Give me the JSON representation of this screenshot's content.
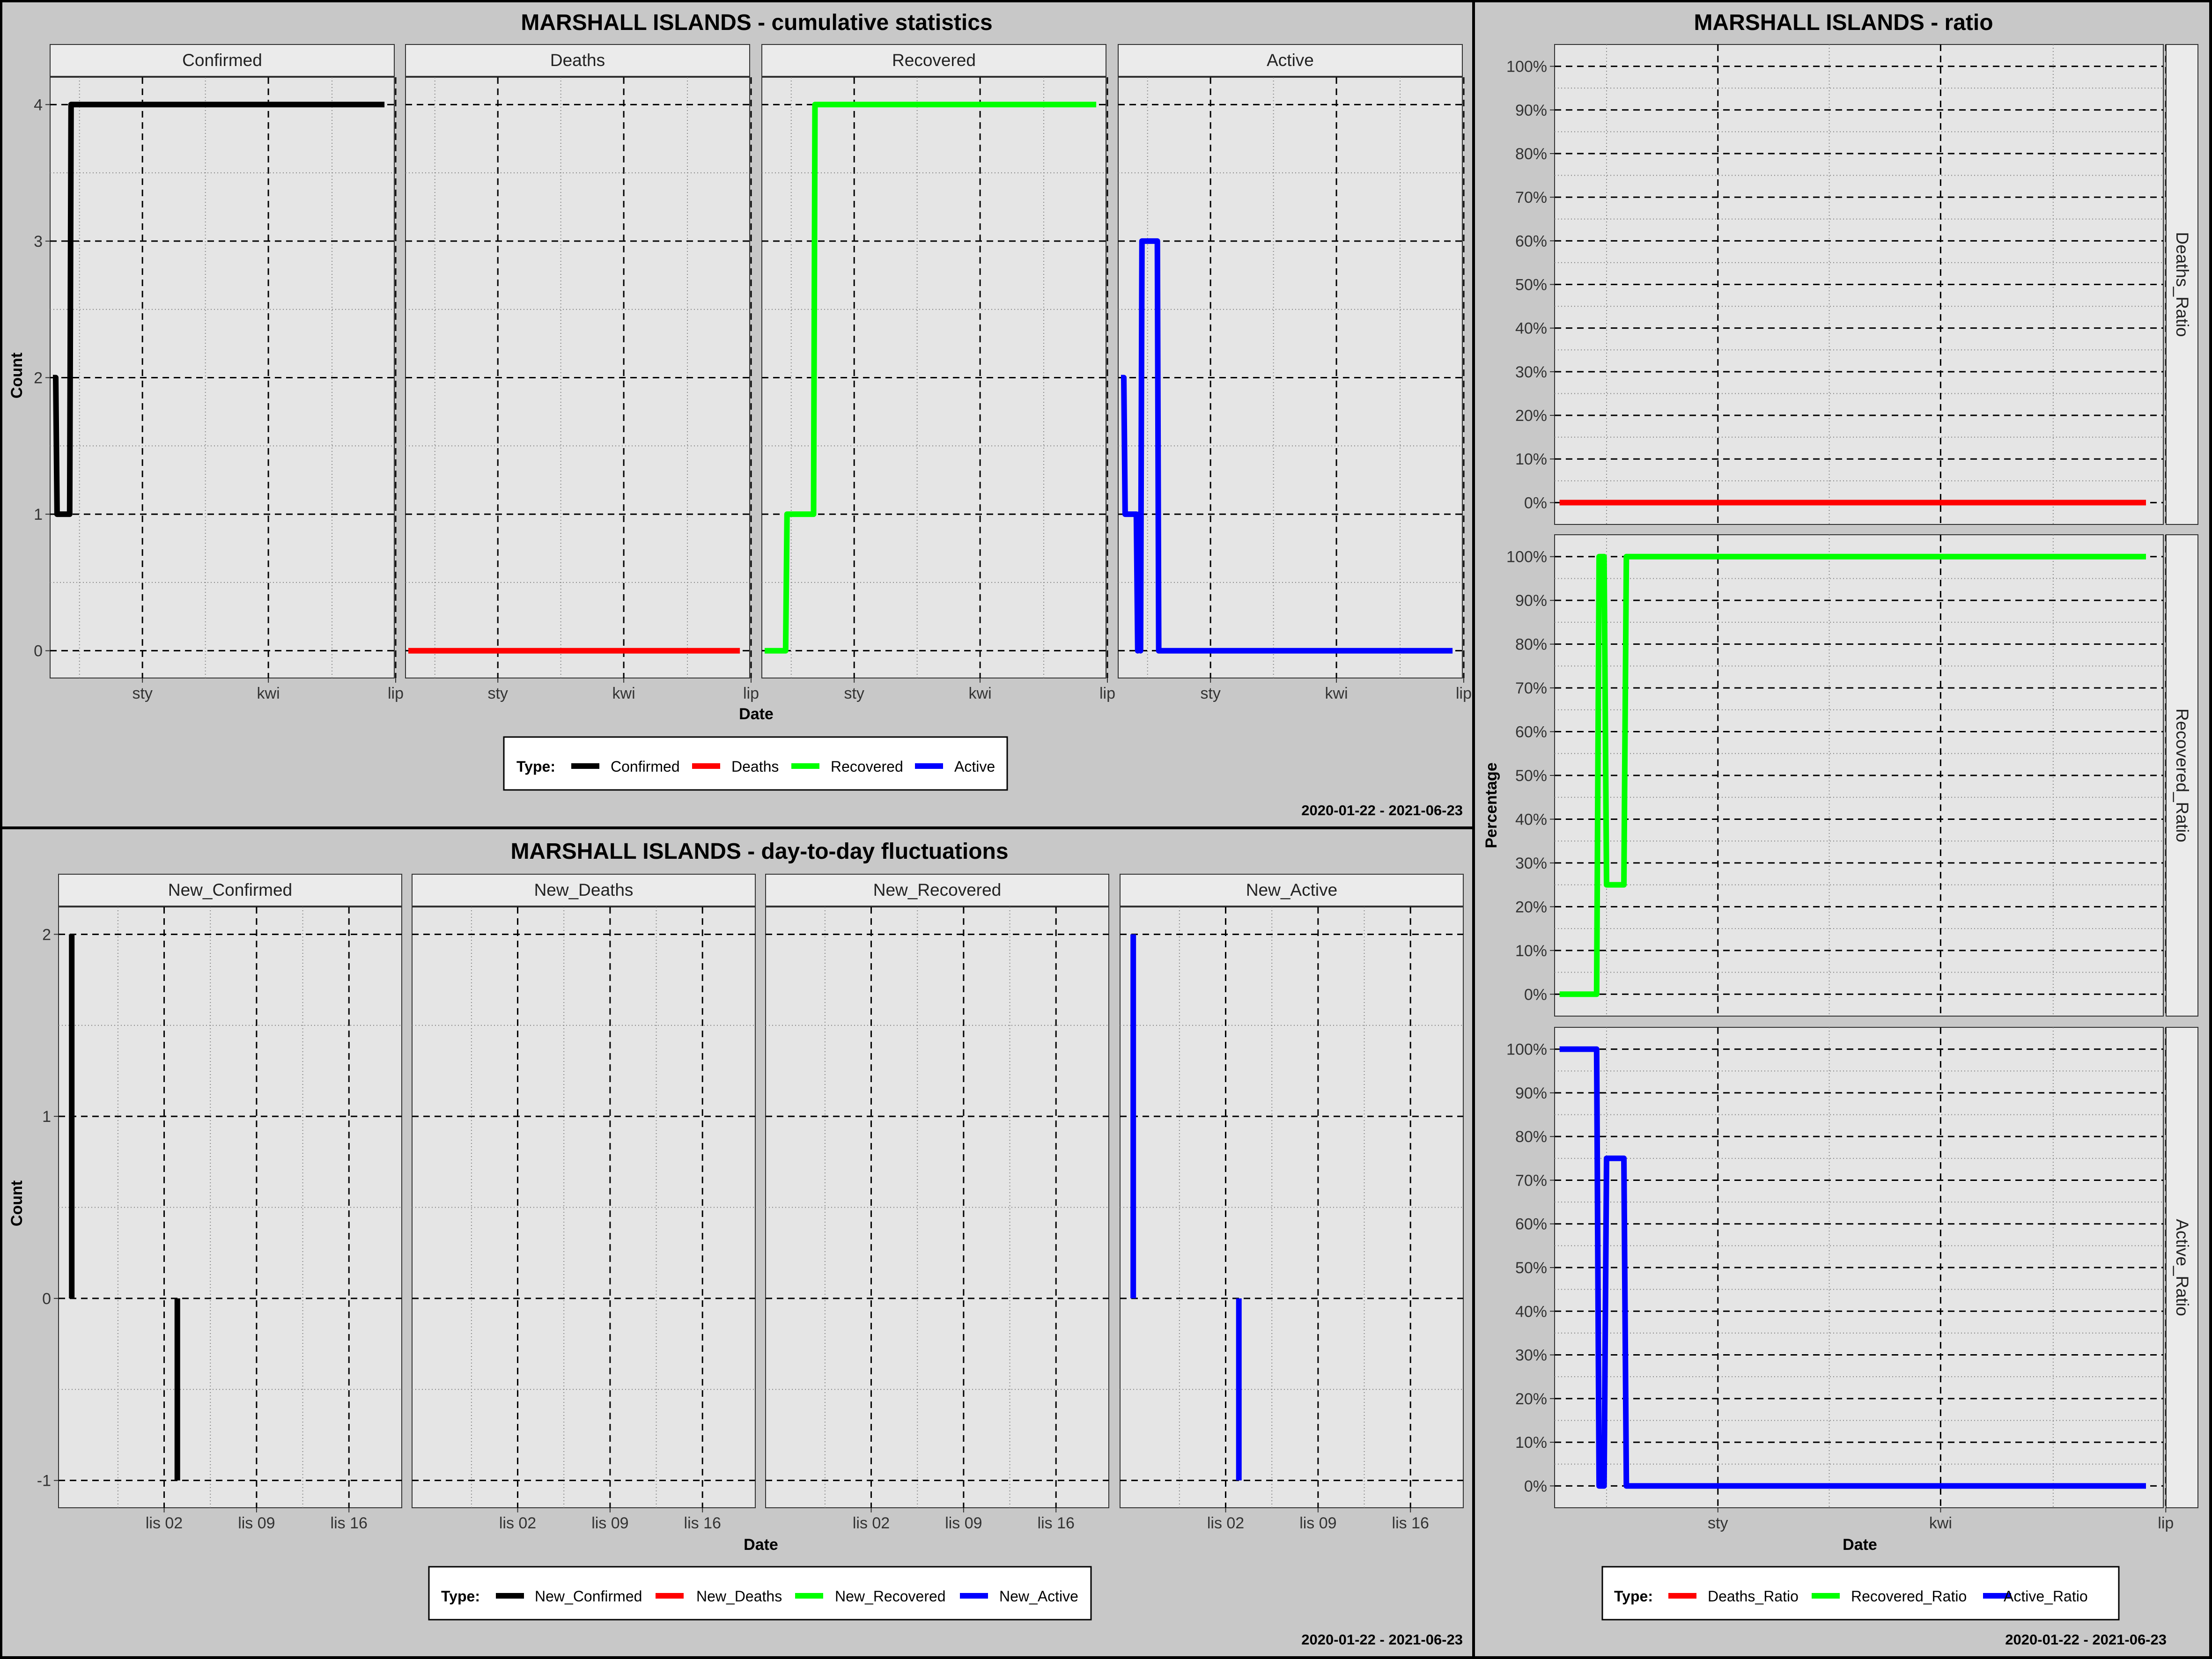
{
  "colors": {
    "black": "#000000",
    "red": "#ff0000",
    "green": "#00ff00",
    "blue": "#0000ff",
    "panel_bg": "#e5e5e5",
    "strip_bg": "#ebebeb",
    "page_bg": "#c8c8c8"
  },
  "cumulative": {
    "title": "MARSHALL ISLANDS - cumulative statistics",
    "ylabel": "Count",
    "xlabel": "Date",
    "x_ticks": [
      "sty",
      "kwi",
      "lip"
    ],
    "y_ticks": [
      "0",
      "1",
      "2",
      "3",
      "4"
    ],
    "legend_title": "Type:",
    "legend": [
      {
        "label": "Confirmed",
        "color": "#000000"
      },
      {
        "label": "Deaths",
        "color": "#ff0000"
      },
      {
        "label": "Recovered",
        "color": "#00ff00"
      },
      {
        "label": "Active",
        "color": "#0000ff"
      }
    ],
    "date_range": "2020-01-22 - 2021-06-23"
  },
  "daily": {
    "title": "MARSHALL ISLANDS - day-to-day fluctuations",
    "ylabel": "Count",
    "xlabel": "Date",
    "x_ticks": [
      "lis 02",
      "lis 09",
      "lis 16"
    ],
    "y_ticks": [
      "-1",
      "0",
      "1",
      "2"
    ],
    "legend_title": "Type:",
    "legend": [
      {
        "label": "New_Confirmed",
        "color": "#000000"
      },
      {
        "label": "New_Deaths",
        "color": "#ff0000"
      },
      {
        "label": "New_Recovered",
        "color": "#00ff00"
      },
      {
        "label": "New_Active",
        "color": "#0000ff"
      }
    ],
    "date_range": "2020-01-22 - 2021-06-23"
  },
  "ratio": {
    "title": "MARSHALL ISLANDS - ratio",
    "ylabel": "Percentage",
    "xlabel": "Date",
    "x_ticks": [
      "sty",
      "kwi",
      "lip"
    ],
    "y_ticks": [
      "0%",
      "10%",
      "20%",
      "30%",
      "40%",
      "50%",
      "60%",
      "70%",
      "80%",
      "90%",
      "100%"
    ],
    "legend_title": "Type:",
    "legend": [
      {
        "label": "Deaths_Ratio",
        "color": "#ff0000"
      },
      {
        "label": "Recovered_Ratio",
        "color": "#00ff00"
      },
      {
        "label": "Active_Ratio",
        "color": "#0000ff"
      }
    ],
    "date_range": "2020-01-22 - 2021-06-23"
  },
  "chart_data": [
    {
      "type": "line",
      "title": "MARSHALL ISLANDS - cumulative statistics",
      "xlabel": "Date",
      "ylabel": "Count",
      "xlim": [
        "2020-10-27",
        "2021-06-30"
      ],
      "ylim": [
        -0.2,
        4.2
      ],
      "x_ticks": [
        {
          "date": "2021-01-01",
          "label": "sty"
        },
        {
          "date": "2021-04-01",
          "label": "kwi"
        },
        {
          "date": "2021-07-01",
          "label": "lip"
        }
      ],
      "y_ticks": [
        0,
        1,
        2,
        3,
        4
      ],
      "grid": true,
      "legend_position": "bottom",
      "facets": [
        {
          "name": "Confirmed",
          "color": "#000000",
          "x": [
            "2020-10-29",
            "2020-10-31",
            "2020-11-01",
            "2020-11-10",
            "2020-11-11",
            "2021-06-23"
          ],
          "y": [
            2,
            2,
            1,
            1,
            4,
            4
          ]
        },
        {
          "name": "Deaths",
          "color": "#ff0000",
          "x": [
            "2020-10-29",
            "2021-06-23"
          ],
          "y": [
            0,
            0
          ]
        },
        {
          "name": "Recovered",
          "color": "#00ff00",
          "x": [
            "2020-10-29",
            "2020-11-13",
            "2020-11-14",
            "2020-12-03",
            "2020-12-04",
            "2021-06-23"
          ],
          "y": [
            0,
            0,
            1,
            1,
            4,
            4
          ]
        },
        {
          "name": "Active",
          "color": "#0000ff",
          "x": [
            "2020-10-29",
            "2020-10-31",
            "2020-11-01",
            "2020-11-09",
            "2020-11-10",
            "2020-11-11",
            "2020-11-12",
            "2020-11-13",
            "2020-11-14",
            "2020-11-24",
            "2020-11-25",
            "2021-06-23"
          ],
          "y": [
            2,
            2,
            1,
            1,
            0,
            1,
            0,
            3,
            3,
            3,
            0,
            0
          ]
        }
      ]
    },
    {
      "type": "line",
      "title": "MARSHALL ISLANDS - day-to-day fluctuations",
      "xlabel": "Date",
      "ylabel": "Count",
      "xlim": [
        "2020-10-25",
        "2020-11-20"
      ],
      "ylim": [
        -1.15,
        2.15
      ],
      "x_ticks": [
        {
          "date": "2020-11-02",
          "label": "lis 02"
        },
        {
          "date": "2020-11-09",
          "label": "lis 09"
        },
        {
          "date": "2020-11-16",
          "label": "lis 16"
        }
      ],
      "y_ticks": [
        -1,
        0,
        1,
        2
      ],
      "grid": true,
      "legend_position": "bottom",
      "facets": [
        {
          "name": "New_Confirmed",
          "color": "#000000",
          "segments": [
            {
              "date": "2020-10-26",
              "from": 0,
              "to": 2
            },
            {
              "date": "2020-11-03",
              "from": -1,
              "to": 0
            }
          ]
        },
        {
          "name": "New_Deaths",
          "color": "#ff0000",
          "segments": []
        },
        {
          "name": "New_Recovered",
          "color": "#00ff00",
          "segments": []
        },
        {
          "name": "New_Active",
          "color": "#0000ff",
          "segments": [
            {
              "date": "2020-10-26",
              "from": 0,
              "to": 2
            },
            {
              "date": "2020-11-03",
              "from": -1,
              "to": 0
            }
          ]
        }
      ]
    },
    {
      "type": "line",
      "title": "MARSHALL ISLANDS - ratio",
      "xlabel": "Date",
      "ylabel": "Percentage",
      "xlim": [
        "2020-10-27",
        "2021-06-30"
      ],
      "ylim": [
        -5,
        105
      ],
      "x_ticks": [
        {
          "date": "2021-01-01",
          "label": "sty"
        },
        {
          "date": "2021-04-01",
          "label": "kwi"
        },
        {
          "date": "2021-07-01",
          "label": "lip"
        }
      ],
      "y_ticks": [
        0,
        10,
        20,
        30,
        40,
        50,
        60,
        70,
        80,
        90,
        100
      ],
      "grid": true,
      "legend_position": "bottom",
      "facets": [
        {
          "name": "Deaths_Ratio",
          "color": "#ff0000",
          "x": [
            "2020-10-29",
            "2021-06-23"
          ],
          "y": [
            0,
            0
          ]
        },
        {
          "name": "Recovered_Ratio",
          "color": "#00ff00",
          "x": [
            "2020-10-29",
            "2020-11-13",
            "2020-11-14",
            "2020-11-16",
            "2020-11-17",
            "2020-11-24",
            "2020-11-25",
            "2021-06-23"
          ],
          "y": [
            0,
            0,
            100,
            100,
            25,
            25,
            100,
            100
          ]
        },
        {
          "name": "Active_Ratio",
          "color": "#0000ff",
          "x": [
            "2020-10-29",
            "2020-11-13",
            "2020-11-14",
            "2020-11-16",
            "2020-11-17",
            "2020-11-24",
            "2020-11-25",
            "2021-06-23"
          ],
          "y": [
            100,
            100,
            0,
            0,
            75,
            75,
            0,
            0
          ]
        }
      ]
    }
  ]
}
